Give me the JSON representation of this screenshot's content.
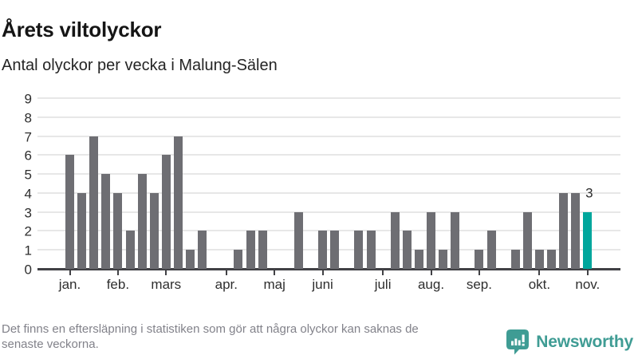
{
  "header": {
    "title": "Årets viltolyckor",
    "subtitle": "Antal olyckor per vecka i Malung-Sälen"
  },
  "chart_data": {
    "type": "bar",
    "title": "Årets viltolyckor",
    "subtitle": "Antal olyckor per vecka i Malung-Sälen",
    "x_unit": "vecka",
    "categories_note": "weekly bars, week 1 through week 44",
    "values": [
      6,
      4,
      7,
      5,
      4,
      2,
      5,
      4,
      6,
      7,
      1,
      2,
      0,
      0,
      1,
      2,
      2,
      0,
      0,
      3,
      0,
      2,
      2,
      0,
      2,
      2,
      0,
      3,
      2,
      1,
      3,
      1,
      3,
      0,
      1,
      2,
      0,
      1,
      3,
      1,
      1,
      4,
      4,
      3
    ],
    "highlight_index": 43,
    "highlight_value_label": "3",
    "y_ticks": [
      0,
      1,
      2,
      3,
      4,
      5,
      6,
      7,
      8,
      9
    ],
    "ylim": [
      0,
      9
    ],
    "grid": true,
    "legend_position": "none",
    "month_ticks": [
      {
        "label": "jan.",
        "week_index": 0
      },
      {
        "label": "feb.",
        "week_index": 4
      },
      {
        "label": "mars",
        "week_index": 8
      },
      {
        "label": "apr.",
        "week_index": 13
      },
      {
        "label": "maj",
        "week_index": 17
      },
      {
        "label": "juni",
        "week_index": 21
      },
      {
        "label": "juli",
        "week_index": 26
      },
      {
        "label": "aug.",
        "week_index": 30
      },
      {
        "label": "sep.",
        "week_index": 34
      },
      {
        "label": "okt.",
        "week_index": 39
      },
      {
        "label": "nov.",
        "week_index": 43
      }
    ],
    "colors": {
      "bar": "#6e6e73",
      "highlight": "#00a69c",
      "gridline": "#e7e7e7",
      "axis": "#414145",
      "label": "#2e2e2e"
    }
  },
  "footer": {
    "note_line1": "Det finns en eftersläpning i statistiken som gör att några olyckor kan saknas de",
    "note_line2": "senaste veckorna.",
    "brand": "Newsworthy",
    "brand_color": "#3f9c94",
    "brand_icon": "newsworthy-speech-bubble-chart-icon"
  }
}
